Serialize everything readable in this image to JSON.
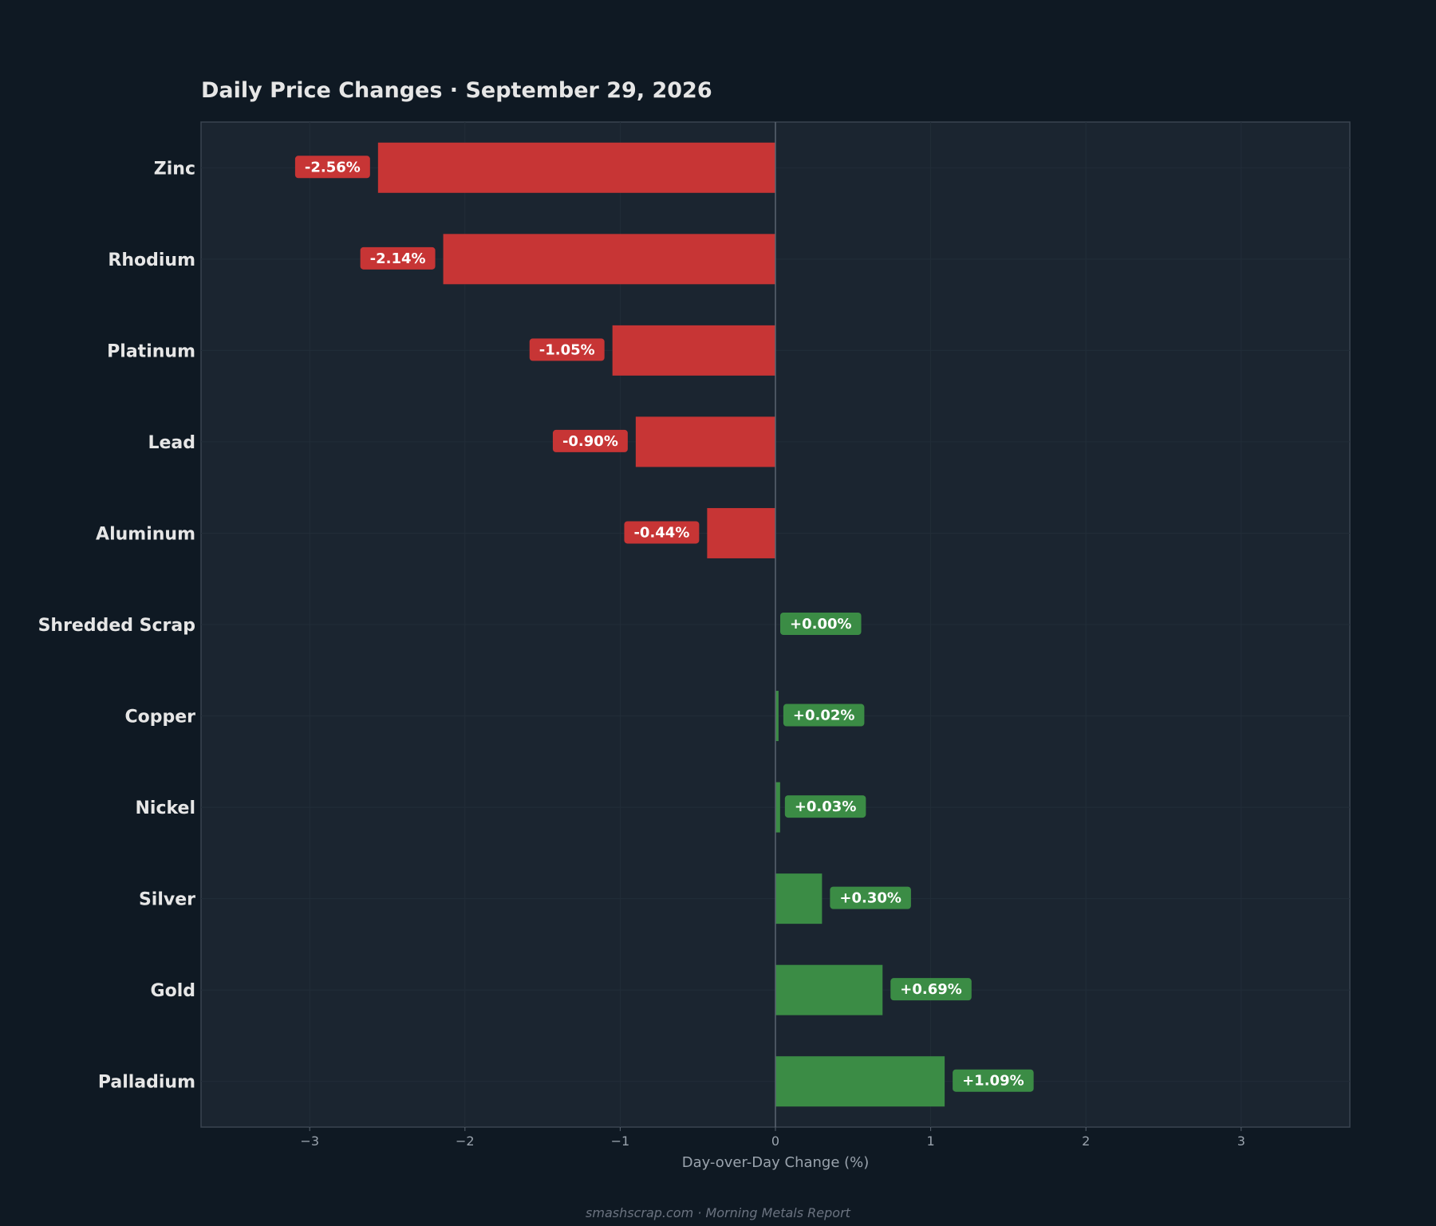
{
  "chart_data": {
    "type": "bar",
    "orientation": "horizontal",
    "title": "Daily Price Changes  ·  September 29, 2026",
    "xlabel": "Day-over-Day Change (%)",
    "ylabel": "",
    "xlim": [
      -3.7,
      3.7
    ],
    "xticks": [
      -3,
      -2,
      -1,
      0,
      1,
      2,
      3
    ],
    "xtick_labels": [
      "−3",
      "−2",
      "−1",
      "0",
      "1",
      "2",
      "3"
    ],
    "categories": [
      "Zinc",
      "Rhodium",
      "Platinum",
      "Lead",
      "Aluminum",
      "Shredded Scrap",
      "Copper",
      "Nickel",
      "Silver",
      "Gold",
      "Palladium"
    ],
    "values": [
      -2.56,
      -2.14,
      -1.05,
      -0.9,
      -0.44,
      0.0,
      0.02,
      0.03,
      0.3,
      0.69,
      1.09
    ],
    "value_labels": [
      "-2.56%",
      "-2.14%",
      "-1.05%",
      "-0.90%",
      "-0.44%",
      "+0.00%",
      "+0.02%",
      "+0.03%",
      "+0.30%",
      "+0.69%",
      "+1.09%"
    ],
    "grid": true,
    "legend": "none",
    "footer": "smashscrap.com  ·  Morning Metals Report",
    "colors": {
      "background": "#0f1923",
      "plot_background": "#1b2530",
      "negative": "#c73535",
      "positive": "#3b8c45",
      "text": "#e6e6e6",
      "muted": "#9aa3ad",
      "zero_line": "#5a6470",
      "frame": "#3a4450"
    }
  }
}
